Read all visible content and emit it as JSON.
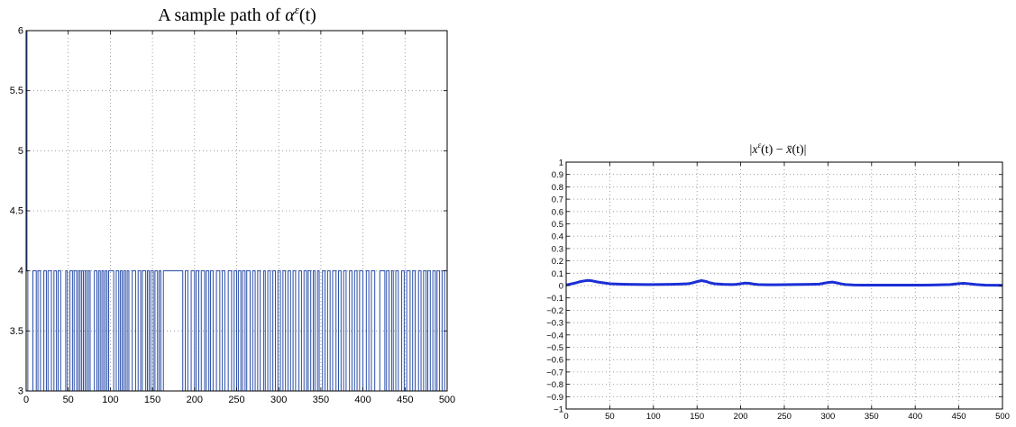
{
  "chart_data": [
    {
      "type": "line",
      "title": "A sample path of αε(t)",
      "title_main": "A sample path of ",
      "title_alpha": "α",
      "title_sup": "ε",
      "title_arg": "(t)",
      "xlim": [
        0,
        500
      ],
      "ylim": [
        3,
        6
      ],
      "grid": true,
      "x_ticks": [
        0,
        50,
        100,
        150,
        200,
        250,
        300,
        350,
        400,
        450,
        500
      ],
      "y_ticks": [
        3,
        3.5,
        4,
        4.5,
        5,
        5.5,
        6
      ],
      "x_tick_labels": [
        "0",
        "50",
        "100",
        "150",
        "200",
        "250",
        "300",
        "350",
        "400",
        "450",
        "500"
      ],
      "y_tick_labels": [
        "3",
        "3.5",
        "4",
        "4.5",
        "5",
        "5.5",
        "6"
      ],
      "line_color": "#2a4ea8",
      "initial_segment": {
        "x": [
          0,
          1,
          1,
          2
        ],
        "y": [
          6,
          6,
          4,
          4
        ]
      },
      "states": [
        3,
        4
      ],
      "switch_times": [
        2,
        8,
        12,
        14,
        17,
        21,
        24,
        26,
        30,
        33,
        36,
        38,
        41,
        47,
        49,
        52,
        55,
        57,
        60,
        62,
        64,
        66,
        68,
        70,
        72,
        74,
        76,
        81,
        84,
        86,
        88,
        90,
        92,
        94,
        96,
        98,
        104,
        107,
        110,
        112,
        114,
        116,
        118,
        120,
        122,
        126,
        130,
        133,
        136,
        138,
        142,
        144,
        146,
        148,
        151,
        153,
        156,
        158,
        160,
        163,
        186,
        189,
        192,
        196,
        200,
        202,
        205,
        208,
        212,
        214,
        217,
        219,
        222,
        226,
        230,
        233,
        236,
        240,
        244,
        247,
        250,
        252,
        255,
        257,
        260,
        262,
        266,
        269,
        272,
        275,
        278,
        282,
        284,
        287,
        290,
        293,
        296,
        299,
        302,
        305,
        308,
        311,
        314,
        317,
        320,
        324,
        327,
        330,
        333,
        335,
        338,
        341,
        343,
        346,
        348,
        352,
        355,
        358,
        361,
        364,
        368,
        371,
        374,
        377,
        380,
        384,
        387,
        390,
        393,
        396,
        400,
        404,
        407,
        410,
        414,
        420,
        426,
        428,
        431,
        434,
        436,
        439,
        442,
        446,
        449,
        452,
        456,
        459,
        462,
        466,
        469,
        472,
        475,
        477,
        480,
        483,
        486,
        488,
        491,
        494,
        497
      ]
    },
    {
      "type": "line",
      "title": "|xε(t) − x̄(t)|",
      "title_open": "|",
      "title_x": "x",
      "title_sup": "ε",
      "title_mid": "(t) − ",
      "title_xbar": "x̄",
      "title_close": "(t)|",
      "xlim": [
        0,
        500
      ],
      "ylim": [
        -1,
        1
      ],
      "grid": true,
      "x_ticks": [
        0,
        50,
        100,
        150,
        200,
        250,
        300,
        350,
        400,
        450,
        500
      ],
      "x_tick_labels": [
        "0",
        "50",
        "100",
        "150",
        "200",
        "250",
        "300",
        "350",
        "400",
        "450",
        "500"
      ],
      "y_ticks": [
        1,
        0.9,
        0.8,
        0.7,
        0.6,
        0.5,
        0.4,
        0.3,
        0.2,
        0.1,
        0,
        -0.1,
        -0.2,
        -0.3,
        -0.4,
        -0.5,
        -0.6,
        -0.7,
        -0.8,
        -0.9,
        -1
      ],
      "y_tick_labels": [
        "1",
        "0.9",
        "0.8",
        "0.7",
        "0.6",
        "0.5",
        "0.4",
        "0.3",
        "0.2",
        "0.1",
        "0",
        "−0.1",
        "−0.2",
        "−0.3",
        "−0.4",
        "−0.5",
        "−0.6",
        "−0.7",
        "−0.8",
        "−0.9",
        "−1"
      ],
      "line_color": "#1b2fd6",
      "x": [
        0,
        5,
        10,
        15,
        20,
        25,
        30,
        35,
        40,
        45,
        50,
        60,
        70,
        80,
        90,
        100,
        110,
        120,
        130,
        140,
        145,
        150,
        155,
        160,
        165,
        170,
        180,
        190,
        195,
        200,
        205,
        210,
        215,
        220,
        230,
        240,
        250,
        260,
        270,
        280,
        290,
        295,
        300,
        305,
        310,
        315,
        320,
        330,
        340,
        350,
        360,
        370,
        380,
        390,
        400,
        410,
        420,
        430,
        440,
        445,
        450,
        455,
        460,
        465,
        470,
        480,
        490,
        500
      ],
      "y": [
        0.005,
        0.012,
        0.02,
        0.03,
        0.037,
        0.042,
        0.038,
        0.03,
        0.025,
        0.02,
        0.015,
        0.012,
        0.01,
        0.009,
        0.008,
        0.008,
        0.009,
        0.01,
        0.012,
        0.015,
        0.022,
        0.032,
        0.04,
        0.034,
        0.022,
        0.015,
        0.01,
        0.008,
        0.01,
        0.015,
        0.02,
        0.018,
        0.012,
        0.008,
        0.006,
        0.006,
        0.007,
        0.008,
        0.009,
        0.01,
        0.012,
        0.018,
        0.025,
        0.028,
        0.022,
        0.014,
        0.008,
        0.005,
        0.004,
        0.004,
        0.004,
        0.004,
        0.004,
        0.004,
        0.004,
        0.004,
        0.005,
        0.006,
        0.008,
        0.012,
        0.016,
        0.018,
        0.016,
        0.012,
        0.008,
        0.004,
        0.003,
        0.002
      ]
    }
  ]
}
